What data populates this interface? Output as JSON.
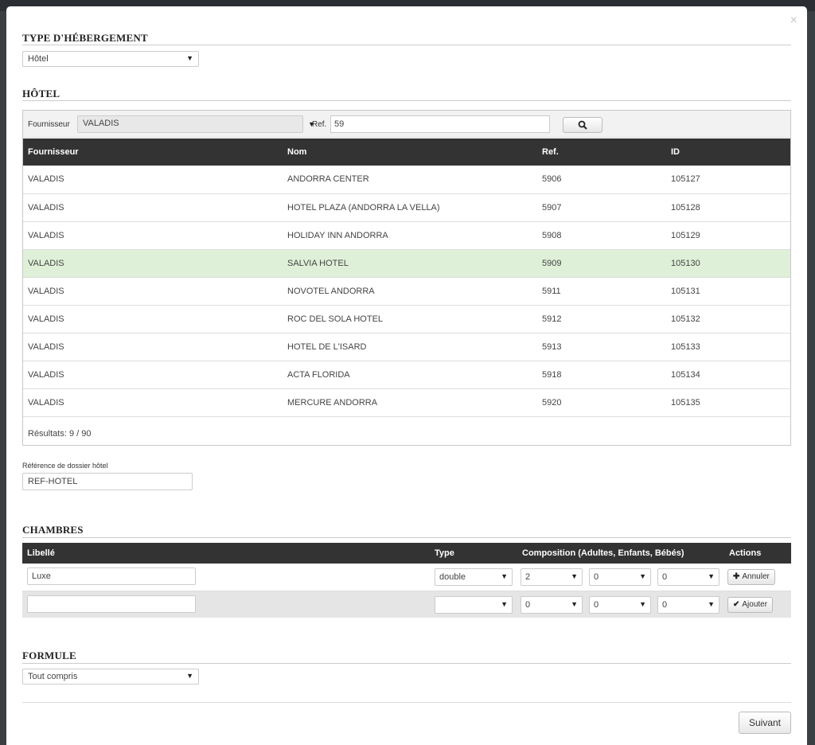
{
  "window": {
    "close_label": "×"
  },
  "accommodation_type": {
    "title": "TYPE D'HÉBERGEMENT",
    "selected": "Hôtel"
  },
  "hotel": {
    "title": "HÔTEL",
    "filter": {
      "provider_label": "Fournisseur",
      "provider_value": "VALADIS",
      "ref_label": "Ref.",
      "ref_value": "59"
    },
    "columns": [
      "Fournisseur",
      "Nom",
      "Ref.",
      "ID"
    ],
    "rows": [
      [
        "VALADIS",
        "ANDORRA CENTER",
        "5906",
        "105127"
      ],
      [
        "VALADIS",
        "HOTEL PLAZA (ANDORRA LA VELLA)",
        "5907",
        "105128"
      ],
      [
        "VALADIS",
        "HOLIDAY INN ANDORRA",
        "5908",
        "105129"
      ],
      [
        "VALADIS",
        "SALVIA HOTEL",
        "5909",
        "105130"
      ],
      [
        "VALADIS",
        "NOVOTEL ANDORRA",
        "5911",
        "105131"
      ],
      [
        "VALADIS",
        "ROC DEL SOLA HOTEL",
        "5912",
        "105132"
      ],
      [
        "VALADIS",
        "HOTEL DE L'ISARD",
        "5913",
        "105133"
      ],
      [
        "VALADIS",
        "ACTA FLORIDA",
        "5918",
        "105134"
      ],
      [
        "VALADIS",
        "MERCURE ANDORRA",
        "5920",
        "105135"
      ]
    ],
    "selected_row": "SALVIA HOTEL",
    "results": "Résultats: 9 / 90"
  },
  "dossier": {
    "label": "Référence de dossier hôtel",
    "value": "REF-HOTEL"
  },
  "rooms": {
    "title": "CHAMBRES",
    "columns": {
      "label": "Libellé",
      "type": "Type",
      "composition": "Composition (Adultes, Enfants, Bébés)",
      "actions": "Actions"
    },
    "row1": {
      "label": "Luxe",
      "type": "double",
      "adults": "2",
      "children": "0",
      "babies": "0",
      "action": "Annuler"
    },
    "row2": {
      "label": "",
      "type": "",
      "adults": "0",
      "children": "0",
      "babies": "0",
      "action": "Ajouter"
    }
  },
  "formula": {
    "title": "FORMULE",
    "selected": "Tout compris"
  },
  "footer": {
    "next_label": "Suivant"
  }
}
